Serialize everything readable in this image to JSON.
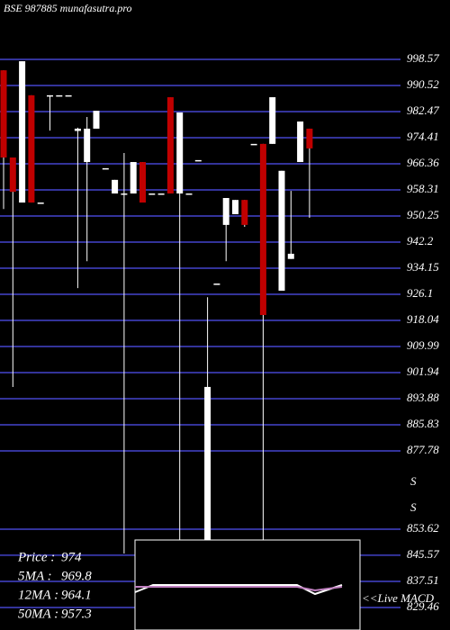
{
  "chart_data": {
    "type": "candlestick",
    "title": "BSE 987885 munafasutra.pro",
    "ylim": [
      822.5,
      1016.9
    ],
    "yticks": [
      998.57,
      990.52,
      982.47,
      974.41,
      966.36,
      958.31,
      950.25,
      942.2,
      934.15,
      926.1,
      918.04,
      909.99,
      901.94,
      893.88,
      885.83,
      877.78,
      853.62,
      845.57,
      837.51,
      829.46
    ],
    "grid": true,
    "up_color": "#ffffff",
    "down_color": "#c00000",
    "grid_color": "#33339a",
    "open": [
      995.2,
      968.3,
      954.4,
      987.5,
      954.4,
      987.5,
      987.5,
      987.5,
      976.5,
      966.9,
      977.2,
      965.0,
      957.2,
      957.2,
      957.2,
      966.9,
      957.2,
      957.2,
      986.9,
      957.2,
      957.2,
      967.5,
      850.2,
      929.4,
      947.5,
      950.8,
      955.2,
      972.5,
      972.5,
      972.5,
      927.2,
      937.0,
      966.9,
      977.2
    ],
    "high": [
      995.2,
      968.3,
      998.0,
      987.5,
      954.4,
      987.5,
      987.5,
      987.5,
      977.5,
      980.8,
      982.7,
      965.0,
      961.4,
      969.7,
      966.9,
      966.9,
      957.2,
      957.2,
      986.9,
      982.2,
      957.2,
      967.5,
      925.2,
      929.4,
      955.8,
      955.2,
      955.2,
      972.5,
      972.5,
      986.9,
      964.2,
      958.0,
      979.4,
      977.2
    ],
    "low": [
      952.4,
      897.5,
      954.4,
      954.4,
      954.4,
      976.6,
      987.5,
      987.5,
      928.0,
      936.3,
      977.2,
      965.0,
      957.2,
      846.1,
      957.2,
      954.4,
      957.2,
      957.2,
      957.2,
      850.2,
      957.2,
      967.5,
      825.0,
      929.4,
      936.3,
      950.8,
      946.9,
      972.5,
      850.2,
      972.5,
      927.2,
      937.0,
      966.9,
      949.7
    ],
    "close": [
      968.3,
      957.7,
      998.0,
      954.4,
      954.4,
      987.5,
      987.5,
      987.5,
      977.2,
      977.2,
      982.7,
      965.0,
      961.4,
      957.2,
      966.9,
      954.4,
      957.2,
      957.2,
      957.2,
      982.2,
      957.2,
      967.5,
      897.5,
      929.4,
      955.8,
      955.2,
      947.5,
      972.5,
      919.7,
      986.9,
      964.2,
      938.6,
      979.4,
      971.1
    ],
    "info": [
      {
        "label": "Price  :",
        "value": 974
      },
      {
        "label": "5MA :",
        "value": 969.8
      },
      {
        "label": "12MA :",
        "value": 964.1
      },
      {
        "label": "50MA :",
        "value": 957.3
      }
    ],
    "indicator_labels": [
      "S",
      "S"
    ],
    "macd_label": "<<Live MACD"
  }
}
